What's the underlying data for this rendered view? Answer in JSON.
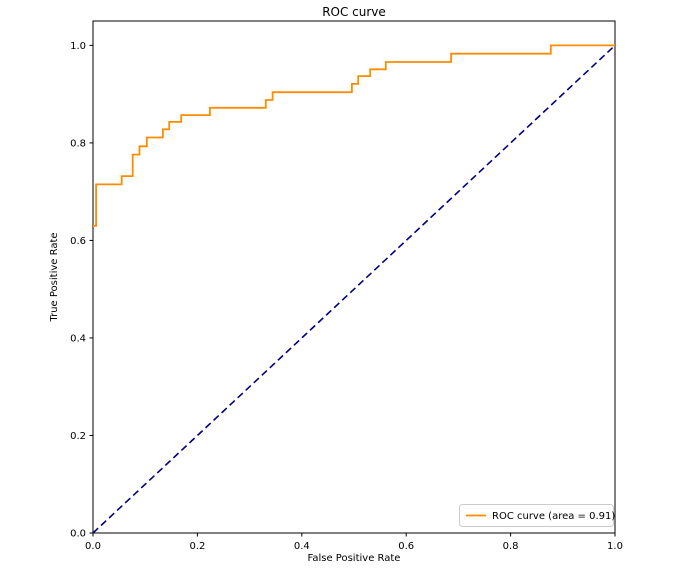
{
  "figure": {
    "title": "ROC curve",
    "xlabel": "False Positive Rate",
    "ylabel": "True Positive Rate",
    "legend": {
      "label": "ROC curve (area = 0.91)",
      "position": "lower right"
    }
  },
  "colors": {
    "roc_curve": "#ff8c00",
    "diagonal": "#000080",
    "spine": "#000000",
    "legend_border": "#cccccc",
    "background": "#ffffff"
  },
  "chart_data": {
    "type": "line",
    "title": "ROC curve",
    "xlabel": "False Positive Rate",
    "ylabel": "True Positive Rate",
    "xlim": [
      0.0,
      1.0
    ],
    "ylim": [
      0.0,
      1.05
    ],
    "xticks": [
      0.0,
      0.2,
      0.4,
      0.6,
      0.8,
      1.0
    ],
    "yticks": [
      0.0,
      0.2,
      0.4,
      0.6,
      0.8,
      1.0
    ],
    "grid": false,
    "legend_position": "lower right",
    "auc": 0.91,
    "series": [
      {
        "name": "ROC curve (area = 0.91)",
        "color": "#ff8c00",
        "style": "solid",
        "width": 1.8,
        "drawstyle": "steps",
        "points": [
          [
            0.0,
            0.63
          ],
          [
            0.006,
            0.63
          ],
          [
            0.006,
            0.715
          ],
          [
            0.055,
            0.715
          ],
          [
            0.055,
            0.732
          ],
          [
            0.076,
            0.732
          ],
          [
            0.076,
            0.776
          ],
          [
            0.089,
            0.776
          ],
          [
            0.089,
            0.793
          ],
          [
            0.103,
            0.793
          ],
          [
            0.103,
            0.811
          ],
          [
            0.134,
            0.811
          ],
          [
            0.134,
            0.828
          ],
          [
            0.146,
            0.828
          ],
          [
            0.146,
            0.843
          ],
          [
            0.169,
            0.843
          ],
          [
            0.169,
            0.857
          ],
          [
            0.224,
            0.857
          ],
          [
            0.224,
            0.872
          ],
          [
            0.331,
            0.872
          ],
          [
            0.331,
            0.888
          ],
          [
            0.344,
            0.888
          ],
          [
            0.344,
            0.904
          ],
          [
            0.496,
            0.904
          ],
          [
            0.496,
            0.921
          ],
          [
            0.508,
            0.921
          ],
          [
            0.508,
            0.937
          ],
          [
            0.531,
            0.937
          ],
          [
            0.531,
            0.951
          ],
          [
            0.561,
            0.951
          ],
          [
            0.561,
            0.966
          ],
          [
            0.686,
            0.966
          ],
          [
            0.686,
            0.983
          ],
          [
            0.877,
            0.983
          ],
          [
            0.877,
            1.0
          ],
          [
            1.0,
            1.0
          ]
        ]
      },
      {
        "name": "",
        "color": "#000080",
        "style": "dashed",
        "width": 1.6,
        "drawstyle": "line",
        "points": [
          [
            0.0,
            0.0
          ],
          [
            1.0,
            1.0
          ]
        ]
      }
    ]
  }
}
